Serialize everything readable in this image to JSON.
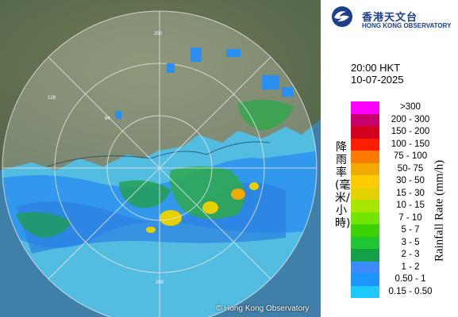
{
  "header": {
    "org_name_cn": "香港天文台",
    "org_name_en": "HONG KONG OBSERVATORY",
    "logo_icon": "hko-swirl-icon"
  },
  "timestamp": {
    "time": "20:00 HKT",
    "date": "10-07-2025"
  },
  "legend": {
    "title_en": "Rainfall Rate (mm/h)",
    "title_cn": "降雨率(毫米/小時)",
    "items": [
      {
        "label": ">300",
        "color": "#ff00ff"
      },
      {
        "label": "200 - 300",
        "color": "#c8006e"
      },
      {
        "label": "150 - 200",
        "color": "#d2001e"
      },
      {
        "label": "100 - 150",
        "color": "#ff1e00"
      },
      {
        "label": "75 - 100",
        "color": "#ff7a00"
      },
      {
        "label": "50- 75",
        "color": "#f0aa00"
      },
      {
        "label": "30 - 50",
        "color": "#ffcc00"
      },
      {
        "label": "15 - 30",
        "color": "#e6d100"
      },
      {
        "label": "10 - 15",
        "color": "#a6e600"
      },
      {
        "label": "7 - 10",
        "color": "#73e600"
      },
      {
        "label": "5 - 7",
        "color": "#3cd200"
      },
      {
        "label": "3 - 5",
        "color": "#1ec832"
      },
      {
        "label": "2 - 3",
        "color": "#14a046"
      },
      {
        "label": "1 - 2",
        "color": "#3c8cff"
      },
      {
        "label": "0.50 - 1",
        "color": "#1e96ff"
      },
      {
        "label": "0.15 - 0.50",
        "color": "#1ec8ff"
      }
    ]
  },
  "map": {
    "ring_labels": [
      "64",
      "128",
      "200"
    ],
    "copyright": "© Hong Kong Observatory"
  }
}
